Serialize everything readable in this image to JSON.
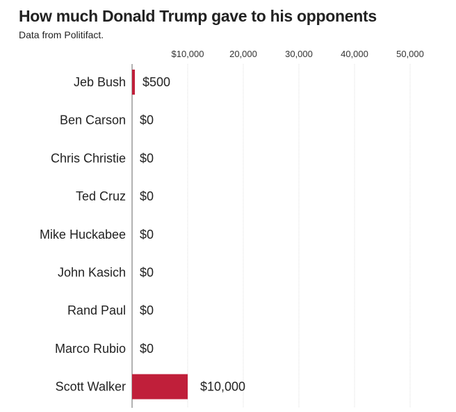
{
  "chart_data": {
    "type": "bar",
    "orientation": "horizontal",
    "title": "How much Donald Trump gave to his opponents",
    "subtitle": "Data from Politifact.",
    "categories": [
      "Jeb Bush",
      "Ben Carson",
      "Chris Christie",
      "Ted Cruz",
      "Mike Huckabee",
      "John Kasich",
      "Rand Paul",
      "Marco Rubio",
      "Scott Walker"
    ],
    "values": [
      500,
      0,
      0,
      0,
      0,
      0,
      0,
      0,
      10000
    ],
    "data_labels": [
      "$500",
      "$0",
      "$0",
      "$0",
      "$0",
      "$0",
      "$0",
      "$0",
      "$10,000"
    ],
    "xlim": [
      0,
      50000
    ],
    "x_ticks": [
      10000,
      20000,
      30000,
      40000,
      50000
    ],
    "x_tick_labels": [
      "$10,000",
      "20,000",
      "30,000",
      "40,000",
      "50,000"
    ],
    "xlabel": "",
    "ylabel": "",
    "grid": true,
    "bar_color": "#c01f3a"
  }
}
